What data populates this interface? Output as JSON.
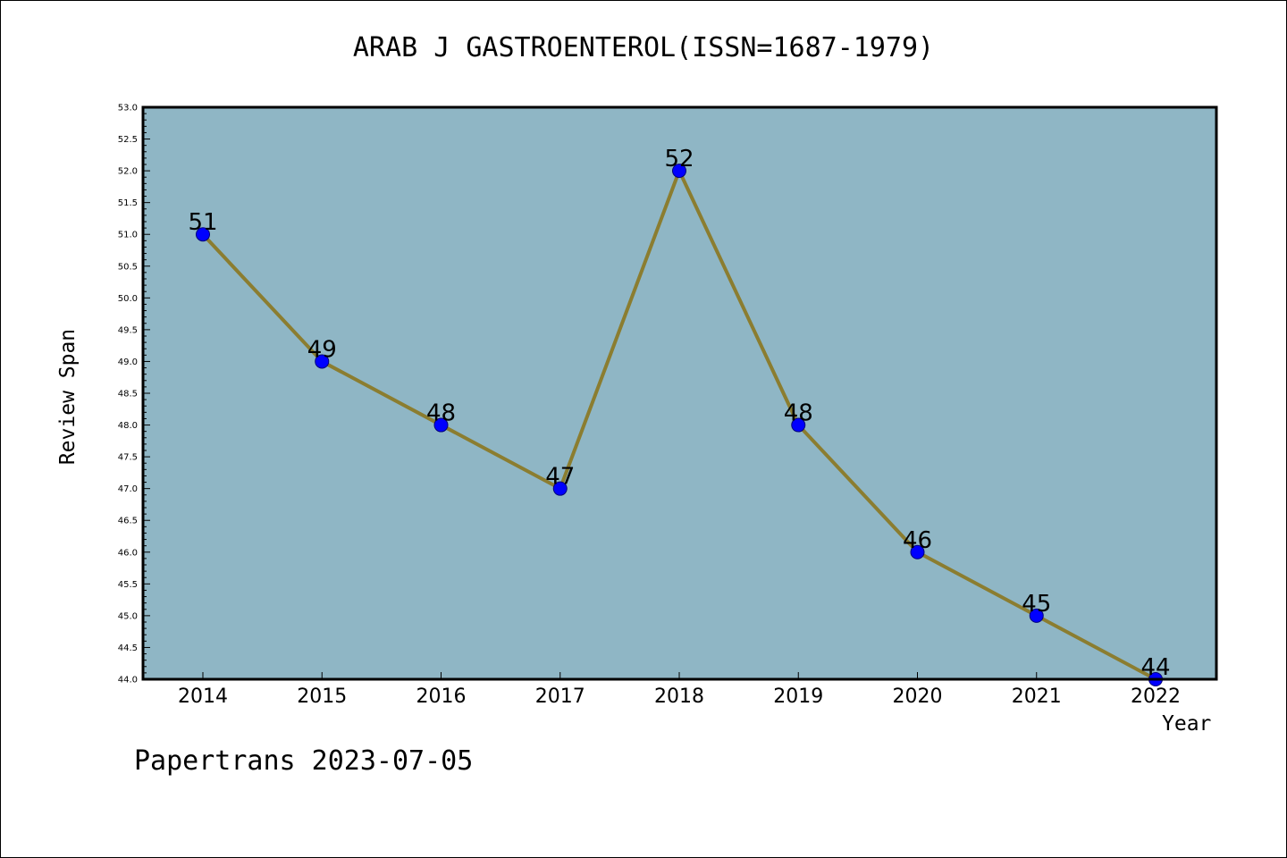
{
  "title": "ARAB J GASTROENTEROL(ISSN=1687-1979)",
  "footer": "Papertrans 2023-07-05",
  "colors": {
    "plot_background": "#8fb6c5",
    "line": "#8b7d30",
    "marker": "#0000ff"
  },
  "chart_data": {
    "type": "line",
    "title": "ARAB J GASTROENTEROL(ISSN=1687-1979)",
    "xlabel": "Year",
    "ylabel": "Review Span",
    "categories": [
      "2014",
      "2015",
      "2016",
      "2017",
      "2018",
      "2019",
      "2020",
      "2021",
      "2022"
    ],
    "values": [
      51,
      49,
      48,
      47,
      52,
      48,
      46,
      45,
      44
    ],
    "ylim": [
      44.0,
      53.0
    ],
    "y_ticks": [
      "44.0",
      "44.5",
      "45.0",
      "45.5",
      "46.0",
      "46.5",
      "47.0",
      "47.5",
      "48.0",
      "48.5",
      "49.0",
      "49.5",
      "50.0",
      "50.5",
      "51.0",
      "51.5",
      "52.0",
      "52.5",
      "53.0"
    ],
    "grid": false,
    "data_labels": true
  }
}
